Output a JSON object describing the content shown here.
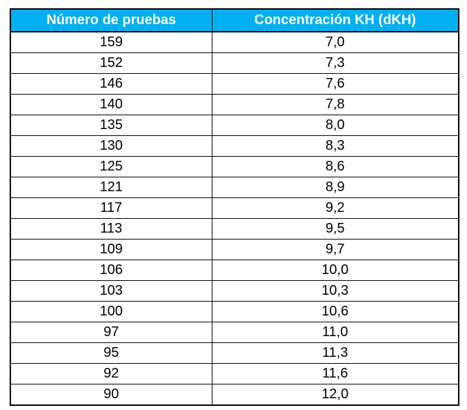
{
  "table": {
    "headers": [
      "Número de pruebas",
      "Concentración KH (dKH)"
    ],
    "header_bg": "#00b0f0",
    "header_color": "#ffffff",
    "rows": [
      [
        "159",
        "7,0"
      ],
      [
        "152",
        "7,3"
      ],
      [
        "146",
        "7,6"
      ],
      [
        "140",
        "7,8"
      ],
      [
        "135",
        "8,0"
      ],
      [
        "130",
        "8,3"
      ],
      [
        "125",
        "8,6"
      ],
      [
        "121",
        "8,9"
      ],
      [
        "117",
        "9,2"
      ],
      [
        "113",
        "9,5"
      ],
      [
        "109",
        "9,7"
      ],
      [
        "106",
        "10,0"
      ],
      [
        "103",
        "10,3"
      ],
      [
        "100",
        "10,6"
      ],
      [
        "97",
        "11,0"
      ],
      [
        "95",
        "11,3"
      ],
      [
        "92",
        "11,6"
      ],
      [
        "90",
        "12,0"
      ]
    ]
  }
}
